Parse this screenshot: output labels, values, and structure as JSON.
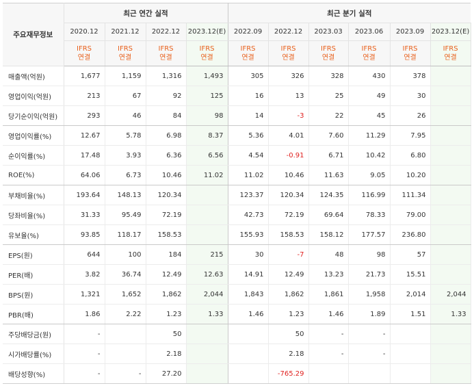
{
  "header": {
    "label": "주요재무정보",
    "annual_title": "최근 연간 실적",
    "quarter_title": "최근 분기 실적"
  },
  "periods": [
    {
      "date": "2020.12",
      "l1": "IFRS",
      "l2": "연결",
      "est": false
    },
    {
      "date": "2021.12",
      "l1": "IFRS",
      "l2": "연결",
      "est": false
    },
    {
      "date": "2022.12",
      "l1": "IFRS",
      "l2": "연결",
      "est": false
    },
    {
      "date": "2023.12(E)",
      "l1": "IFRS",
      "l2": "연결",
      "est": true
    },
    {
      "date": "2022.09",
      "l1": "IFRS",
      "l2": "연결",
      "est": false
    },
    {
      "date": "2022.12",
      "l1": "IFRS",
      "l2": "연결",
      "est": false
    },
    {
      "date": "2023.03",
      "l1": "IFRS",
      "l2": "연결",
      "est": false
    },
    {
      "date": "2023.06",
      "l1": "IFRS",
      "l2": "연결",
      "est": false
    },
    {
      "date": "2023.09",
      "l1": "IFRS",
      "l2": "연결",
      "est": false
    },
    {
      "date": "2023.12(E)",
      "l1": "IFRS",
      "l2": "연결",
      "est": true
    }
  ],
  "rows": [
    {
      "label": "매출액(억원)",
      "values": [
        "1,677",
        "1,159",
        "1,316",
        "1,493",
        "305",
        "326",
        "328",
        "430",
        "378",
        ""
      ]
    },
    {
      "label": "영업이익(억원)",
      "values": [
        "213",
        "67",
        "92",
        "125",
        "16",
        "13",
        "25",
        "49",
        "30",
        ""
      ]
    },
    {
      "label": "당기순이익(억원)",
      "values": [
        "293",
        "46",
        "84",
        "98",
        "14",
        "-3",
        "22",
        "45",
        "26",
        ""
      ]
    },
    {
      "label": "영업이익률(%)",
      "values": [
        "12.67",
        "5.78",
        "6.98",
        "8.37",
        "5.36",
        "4.01",
        "7.60",
        "11.29",
        "7.95",
        ""
      ]
    },
    {
      "label": "순이익률(%)",
      "values": [
        "17.48",
        "3.93",
        "6.36",
        "6.56",
        "4.54",
        "-0.91",
        "6.71",
        "10.42",
        "6.80",
        ""
      ]
    },
    {
      "label": "ROE(%)",
      "values": [
        "64.06",
        "6.73",
        "10.46",
        "11.02",
        "11.02",
        "10.46",
        "11.63",
        "9.05",
        "10.20",
        ""
      ]
    },
    {
      "label": "부채비율(%)",
      "values": [
        "193.64",
        "148.13",
        "120.34",
        "",
        "123.37",
        "120.34",
        "124.35",
        "116.99",
        "111.34",
        ""
      ]
    },
    {
      "label": "당좌비율(%)",
      "values": [
        "31.33",
        "95.49",
        "72.19",
        "",
        "42.73",
        "72.19",
        "69.64",
        "78.33",
        "79.00",
        ""
      ]
    },
    {
      "label": "유보율(%)",
      "values": [
        "93.85",
        "118.17",
        "158.53",
        "",
        "155.93",
        "158.53",
        "158.12",
        "177.57",
        "236.80",
        ""
      ]
    },
    {
      "label": "EPS(원)",
      "values": [
        "644",
        "100",
        "184",
        "215",
        "30",
        "-7",
        "48",
        "98",
        "57",
        ""
      ]
    },
    {
      "label": "PER(배)",
      "values": [
        "3.82",
        "36.74",
        "12.49",
        "12.63",
        "14.91",
        "12.49",
        "13.23",
        "21.73",
        "15.51",
        ""
      ]
    },
    {
      "label": "BPS(원)",
      "values": [
        "1,321",
        "1,652",
        "1,862",
        "2,044",
        "1,843",
        "1,862",
        "1,861",
        "1,958",
        "2,014",
        "2,044"
      ]
    },
    {
      "label": "PBR(배)",
      "values": [
        "1.86",
        "2.22",
        "1.23",
        "1.33",
        "1.46",
        "1.23",
        "1.46",
        "1.89",
        "1.51",
        "1.33"
      ]
    },
    {
      "label": "주당배당금(원)",
      "values": [
        "-",
        "",
        "50",
        "",
        "",
        "50",
        "-",
        "-",
        "",
        ""
      ]
    },
    {
      "label": "시가배당률(%)",
      "values": [
        "-",
        "",
        "2.18",
        "",
        "",
        "2.18",
        "-",
        "-",
        "",
        ""
      ]
    },
    {
      "label": "배당성향(%)",
      "values": [
        "-",
        "-",
        "27.20",
        "",
        "",
        "-765.29",
        "",
        "",
        "",
        ""
      ]
    }
  ],
  "colors": {
    "ifrs": "#e8601c",
    "negative": "#e0201e",
    "estimate_bg": "#f3faf2",
    "header_bg": "#f7f7f7"
  }
}
